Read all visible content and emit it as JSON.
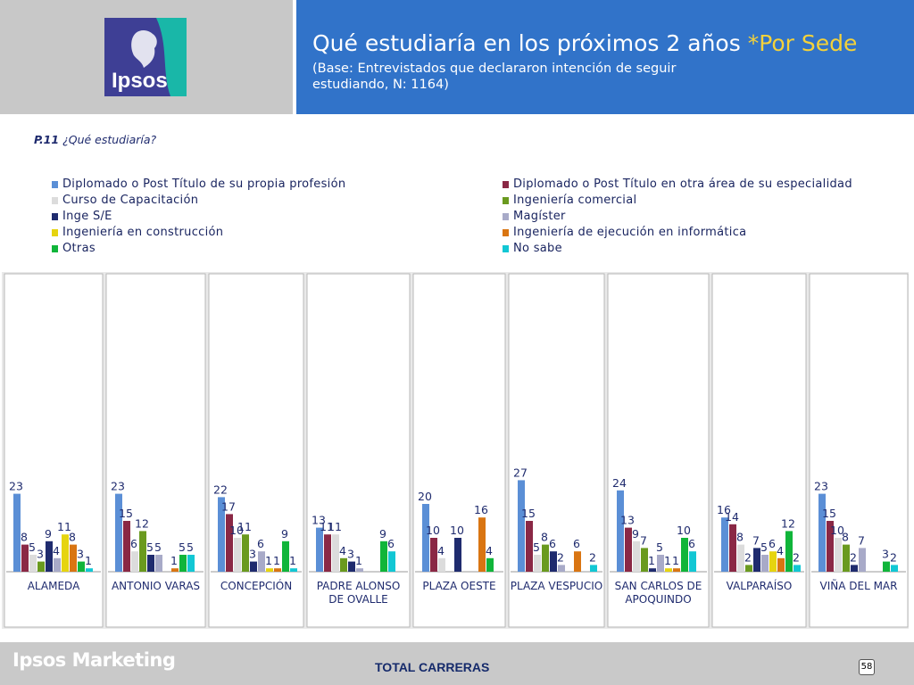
{
  "header": {
    "brand_logo_text": "Ipsos",
    "title_main": "Qué estudiaría en los próximos 2 años ",
    "title_accent": "*Por Sede",
    "subtitle": "(Base: Entrevistados que declararon intención de seguir estudiando, N: 1164)"
  },
  "question": {
    "number": "P.11",
    "text": "¿Qué estudiaría?"
  },
  "colors": {
    "header_blue": "#3173c9",
    "accent_yellow": "#f4d23a",
    "series": [
      "#5b8fd6",
      "#8a2845",
      "#dcdcdc",
      "#6a9a1f",
      "#1f2b6e",
      "#a8aac8",
      "#e6d40f",
      "#d97512",
      "#10b53a",
      "#12c7d4"
    ]
  },
  "chart_data": {
    "type": "bar",
    "categories": [
      "ALAMEDA",
      "ANTONIO VARAS",
      "CONCEPCIÓN",
      "PADRE ALONSO DE OVALLE",
      "PLAZA OESTE",
      "PLAZA VESPUCIO",
      "SAN CARLOS DE APOQUINDO",
      "VALPARAÍSO",
      "VIÑA DEL MAR"
    ],
    "series": [
      {
        "name": "Diplomado o Post Título de su propia profesión",
        "values": [
          23,
          23,
          22,
          13,
          20,
          27,
          24,
          16,
          23
        ]
      },
      {
        "name": "Diplomado o Post Título en otra área de su especialidad",
        "values": [
          8,
          15,
          17,
          11,
          10,
          15,
          13,
          14,
          15
        ]
      },
      {
        "name": "Curso de Capacitación",
        "values": [
          5,
          6,
          10,
          11,
          4,
          5,
          9,
          8,
          10
        ]
      },
      {
        "name": "Ingeniería comercial",
        "values": [
          3,
          12,
          11,
          4,
          null,
          8,
          7,
          2,
          8
        ]
      },
      {
        "name": "Inge S/E",
        "values": [
          9,
          5,
          3,
          3,
          10,
          6,
          1,
          7,
          2
        ]
      },
      {
        "name": "Magíster",
        "values": [
          4,
          5,
          6,
          1,
          null,
          2,
          5,
          5,
          7
        ]
      },
      {
        "name": "Ingeniería en construcción",
        "values": [
          11,
          null,
          1,
          null,
          null,
          null,
          1,
          6,
          null
        ]
      },
      {
        "name": "Ingeniería de ejecución en informática",
        "values": [
          8,
          1,
          1,
          null,
          16,
          6,
          1,
          4,
          null
        ]
      },
      {
        "name": "Otras",
        "values": [
          3,
          5,
          9,
          9,
          4,
          null,
          10,
          12,
          3
        ]
      },
      {
        "name": "No sabe",
        "values": [
          1,
          5,
          1,
          6,
          null,
          2,
          6,
          2,
          2
        ]
      }
    ],
    "ylim": [
      0,
      30
    ],
    "legend_position": "top"
  },
  "footer": {
    "brand": "Ipsos Marketing",
    "total_label": "TOTAL CARRERAS",
    "page_number": "58"
  }
}
